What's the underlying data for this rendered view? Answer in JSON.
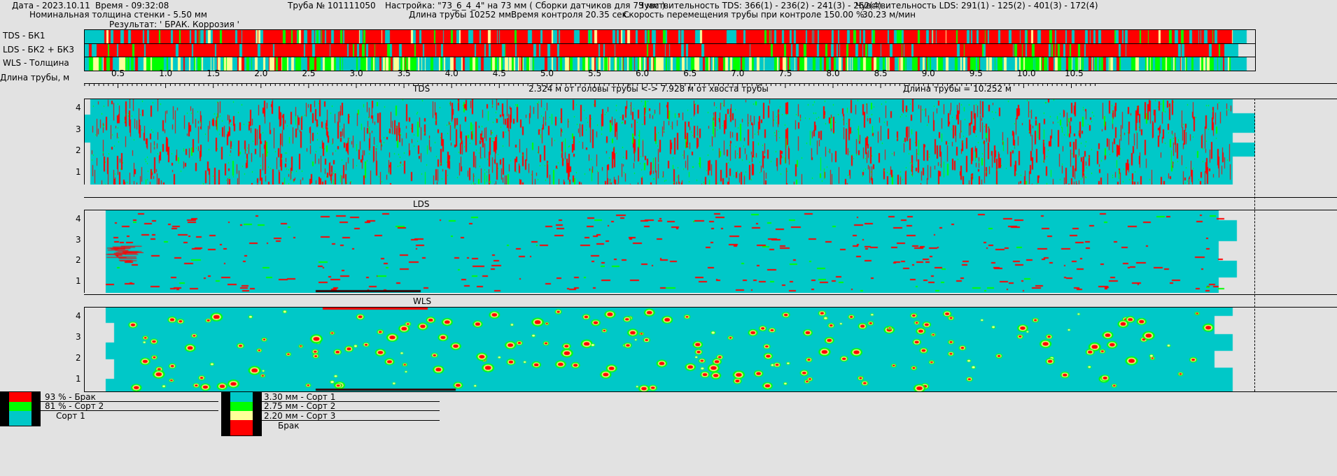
{
  "header": {
    "date": "Дата - 2023.10.11",
    "time": "Время - 09:32:08",
    "pipe_no": "Труба № 101111050",
    "setting": "Настройка: \"73_6_4_4\" на 73 мм ( Сборки датчиков для 73 мм )",
    "sens_tds": "Чувствительность TDS: 366(1) - 236(2) - 241(3) - 262(4)",
    "sens_lds": "Чувствительность LDS: 291(1) - 125(2) - 401(3) - 172(4)",
    "wall": "Номинальная толщина стенки - 5.50 мм",
    "pipe_len": "Длина трубы 10252 мм.",
    "ctrl_time": "Время контроля 20.35 сек.",
    "speed": "Скорость перемещения трубы при контроле 150.00 %.",
    "speed_mmin": "30.23 м/мин",
    "result": "Результат: ' БРАК. Коррозия '"
  },
  "strips": [
    {
      "label": "TDS - БК1"
    },
    {
      "label": "LDS - БК2 + БК3"
    },
    {
      "label": "WLS - Толщина"
    }
  ],
  "ruler": {
    "label": "Длина трубы, м",
    "ticks": [
      "0.5",
      "1.0",
      "1.5",
      "2.0",
      "2.5",
      "3.0",
      "3.5",
      "4.0",
      "4.5",
      "5.0",
      "5.5",
      "6.0",
      "6.5",
      "7.0",
      "7.5",
      "8.0",
      "8.5",
      "9.0",
      "9.5",
      "10.0",
      "10.5"
    ]
  },
  "panels": {
    "tds": {
      "title": "TDS",
      "position_info": "2.324 м от головы трубы   <->   7.928 м от хвоста трубы",
      "length_info": "Длина трубы = 10.252 м"
    },
    "lds": {
      "title": "LDS"
    },
    "wls": {
      "title": "WLS"
    },
    "channels": [
      "4",
      "3",
      "2",
      "1"
    ]
  },
  "legend1": {
    "items": [
      "93 % - Брак",
      "81 % - Сорт 2",
      "Сорт 1"
    ],
    "colors": [
      "#ff0000",
      "#00ff00",
      "#00c8c8"
    ]
  },
  "legend2": {
    "items": [
      "3.30 мм - Сорт 1",
      "2.75 мм - Сорт 2",
      "2.20 мм - Сорт 3",
      "Брак"
    ],
    "colors": [
      "#00c8c8",
      "#00ff00",
      "#ffff99",
      "#ff0000"
    ]
  },
  "colors": {
    "cyan": "#00c8c8",
    "red": "#ff0000",
    "green": "#00ff00",
    "yellow": "#ffff99",
    "background": "#e2e2e2"
  }
}
